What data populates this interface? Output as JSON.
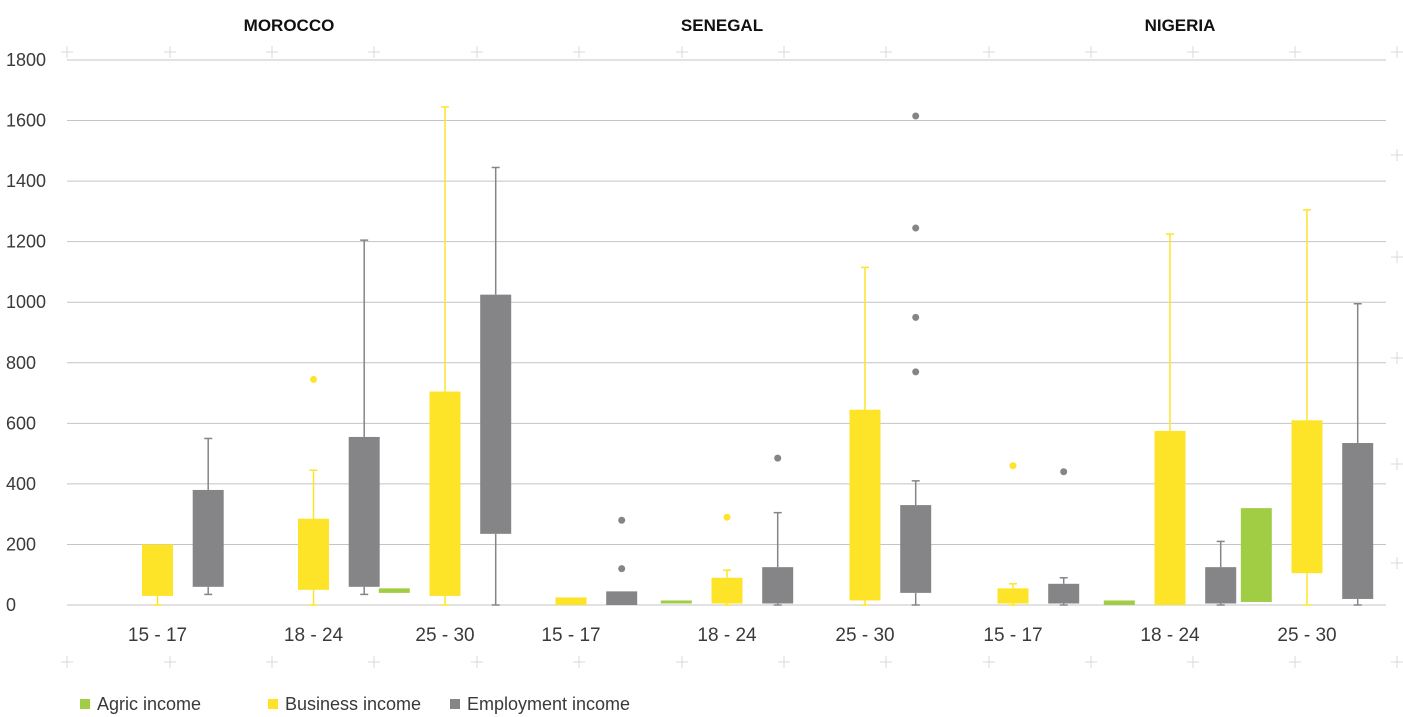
{
  "chart_data": {
    "type": "box",
    "groups": [
      "MOROCCO",
      "SENEGAL",
      "NIGERIA"
    ],
    "categories": [
      "15 - 17",
      "18 - 24",
      "25 - 30"
    ],
    "ylim": [
      0,
      1800
    ],
    "yticks": [
      0,
      200,
      400,
      600,
      800,
      1000,
      1200,
      1400,
      1600,
      1800
    ],
    "grid": true,
    "legend_position": "bottom-left",
    "colors": {
      "agric": "#a1cd45",
      "business": "#fde428",
      "employment": "#858587"
    },
    "series": [
      {
        "name": "Agric income",
        "key": "agric"
      },
      {
        "name": "Business income",
        "key": "business"
      },
      {
        "name": "Employment income",
        "key": "employment"
      }
    ],
    "boxes": [
      {
        "group": "MOROCCO",
        "category": "15 - 17",
        "series": "business",
        "q1": 30,
        "q3": 200,
        "whisker_low": 0,
        "whisker_high": 200,
        "outliers": []
      },
      {
        "group": "MOROCCO",
        "category": "15 - 17",
        "series": "employment",
        "q1": 60,
        "q3": 380,
        "whisker_low": 35,
        "whisker_high": 550,
        "outliers": []
      },
      {
        "group": "MOROCCO",
        "category": "18 - 24",
        "series": "business",
        "q1": 50,
        "q3": 285,
        "whisker_low": 0,
        "whisker_high": 445,
        "outliers": [
          745
        ]
      },
      {
        "group": "MOROCCO",
        "category": "18 - 24",
        "series": "employment",
        "q1": 60,
        "q3": 555,
        "whisker_low": 35,
        "whisker_high": 1205,
        "outliers": []
      },
      {
        "group": "MOROCCO",
        "category": "25 - 30",
        "series": "agric",
        "q1": 40,
        "q3": 55,
        "whisker_low": 40,
        "whisker_high": 55,
        "outliers": []
      },
      {
        "group": "MOROCCO",
        "category": "25 - 30",
        "series": "business",
        "q1": 30,
        "q3": 705,
        "whisker_low": 0,
        "whisker_high": 1645,
        "outliers": []
      },
      {
        "group": "MOROCCO",
        "category": "25 - 30",
        "series": "employment",
        "q1": 235,
        "q3": 1025,
        "whisker_low": 0,
        "whisker_high": 1445,
        "outliers": []
      },
      {
        "group": "SENEGAL",
        "category": "15 - 17",
        "series": "business",
        "q1": 0,
        "q3": 25,
        "whisker_low": 0,
        "whisker_high": 25,
        "outliers": []
      },
      {
        "group": "SENEGAL",
        "category": "15 - 17",
        "series": "employment",
        "q1": 0,
        "q3": 45,
        "whisker_low": 0,
        "whisker_high": 45,
        "outliers": [
          120,
          280
        ]
      },
      {
        "group": "SENEGAL",
        "category": "18 - 24",
        "series": "agric",
        "q1": 5,
        "q3": 15,
        "whisker_low": 5,
        "whisker_high": 15,
        "outliers": []
      },
      {
        "group": "SENEGAL",
        "category": "18 - 24",
        "series": "business",
        "q1": 5,
        "q3": 90,
        "whisker_low": 0,
        "whisker_high": 115,
        "outliers": [
          290
        ]
      },
      {
        "group": "SENEGAL",
        "category": "18 - 24",
        "series": "employment",
        "q1": 5,
        "q3": 125,
        "whisker_low": 0,
        "whisker_high": 305,
        "outliers": [
          485
        ]
      },
      {
        "group": "SENEGAL",
        "category": "25 - 30",
        "series": "business",
        "q1": 15,
        "q3": 645,
        "whisker_low": 0,
        "whisker_high": 1115,
        "outliers": []
      },
      {
        "group": "SENEGAL",
        "category": "25 - 30",
        "series": "employment",
        "q1": 40,
        "q3": 330,
        "whisker_low": 0,
        "whisker_high": 410,
        "outliers": [
          770,
          950,
          1245,
          1615
        ]
      },
      {
        "group": "NIGERIA",
        "category": "15 - 17",
        "series": "business",
        "q1": 5,
        "q3": 55,
        "whisker_low": 0,
        "whisker_high": 70,
        "outliers": [
          460
        ]
      },
      {
        "group": "NIGERIA",
        "category": "15 - 17",
        "series": "employment",
        "q1": 5,
        "q3": 70,
        "whisker_low": 0,
        "whisker_high": 90,
        "outliers": [
          440
        ]
      },
      {
        "group": "NIGERIA",
        "category": "18 - 24",
        "series": "agric",
        "q1": 0,
        "q3": 15,
        "whisker_low": 0,
        "whisker_high": 15,
        "outliers": []
      },
      {
        "group": "NIGERIA",
        "category": "18 - 24",
        "series": "business",
        "q1": 0,
        "q3": 575,
        "whisker_low": 0,
        "whisker_high": 1225,
        "outliers": []
      },
      {
        "group": "NIGERIA",
        "category": "18 - 24",
        "series": "employment",
        "q1": 5,
        "q3": 125,
        "whisker_low": 0,
        "whisker_high": 210,
        "outliers": []
      },
      {
        "group": "NIGERIA",
        "category": "25 - 30",
        "series": "agric",
        "q1": 10,
        "q3": 320,
        "whisker_low": 10,
        "whisker_high": 320,
        "outliers": []
      },
      {
        "group": "NIGERIA",
        "category": "25 - 30",
        "series": "business",
        "q1": 105,
        "q3": 610,
        "whisker_low": 0,
        "whisker_high": 1305,
        "outliers": []
      },
      {
        "group": "NIGERIA",
        "category": "25 - 30",
        "series": "employment",
        "q1": 20,
        "q3": 535,
        "whisker_low": 0,
        "whisker_high": 995,
        "outliers": []
      }
    ]
  }
}
